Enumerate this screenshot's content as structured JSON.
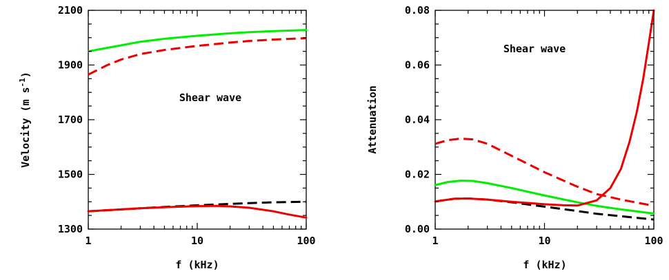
{
  "chart_data": [
    {
      "type": "line",
      "xlabel": "f (kHz)",
      "ylabel": "Velocity (m s",
      "ylabel_superscript": "-1",
      "ylabel_close": ")",
      "annotation": "Shear wave",
      "x_scale": "log",
      "xlim": [
        1,
        100
      ],
      "ylim": [
        1300,
        2100
      ],
      "x_ticks": [
        {
          "v": 1,
          "label": "1"
        },
        {
          "v": 10,
          "label": "10"
        },
        {
          "v": 100,
          "label": "100"
        }
      ],
      "y_ticks": [
        {
          "v": 1300,
          "label": "1300"
        },
        {
          "v": 1500,
          "label": "1500"
        },
        {
          "v": 1700,
          "label": "1700"
        },
        {
          "v": 1900,
          "label": "1900"
        },
        {
          "v": 2100,
          "label": "2100"
        }
      ],
      "grid": false,
      "series": [
        {
          "color": "#00ee00",
          "style": "solid",
          "x": [
            1,
            2,
            3,
            5,
            10,
            20,
            30,
            50,
            100
          ],
          "y": [
            1950,
            1972,
            1985,
            1996,
            2007,
            2016,
            2020,
            2024,
            2028
          ]
        },
        {
          "color": "#ee0000",
          "style": "dashed",
          "x": [
            1,
            1.5,
            2,
            3,
            5,
            10,
            20,
            30,
            50,
            100
          ],
          "y": [
            1865,
            1900,
            1920,
            1940,
            1955,
            1970,
            1982,
            1988,
            1993,
            1998
          ]
        },
        {
          "color": "#000000",
          "style": "dashed",
          "x": [
            1,
            2,
            3,
            5,
            10,
            20,
            30,
            50,
            100
          ],
          "y": [
            1365,
            1372,
            1376,
            1381,
            1387,
            1392,
            1395,
            1398,
            1400
          ]
        },
        {
          "color": "#ee0000",
          "style": "solid",
          "x": [
            1,
            2,
            3,
            5,
            10,
            15,
            20,
            30,
            50,
            70,
            100
          ],
          "y": [
            1365,
            1372,
            1376,
            1380,
            1384,
            1385,
            1383,
            1378,
            1365,
            1353,
            1342
          ]
        }
      ]
    },
    {
      "type": "line",
      "xlabel": "f (kHz)",
      "ylabel": "Attenuation",
      "annotation": "Shear wave",
      "x_scale": "log",
      "xlim": [
        1,
        100
      ],
      "ylim": [
        0,
        0.08
      ],
      "x_ticks": [
        {
          "v": 1,
          "label": "1"
        },
        {
          "v": 10,
          "label": "10"
        },
        {
          "v": 100,
          "label": "100"
        }
      ],
      "y_ticks": [
        {
          "v": 0,
          "label": "0.00"
        },
        {
          "v": 0.02,
          "label": "0.02"
        },
        {
          "v": 0.04,
          "label": "0.04"
        },
        {
          "v": 0.06,
          "label": "0.06"
        },
        {
          "v": 0.08,
          "label": "0.08"
        }
      ],
      "grid": false,
      "series": [
        {
          "color": "#ee0000",
          "style": "dashed",
          "x": [
            1,
            1.3,
            1.7,
            2.2,
            3,
            5,
            10,
            20,
            30,
            50,
            100
          ],
          "y": [
            0.0312,
            0.0325,
            0.0331,
            0.0328,
            0.0312,
            0.0268,
            0.0208,
            0.0155,
            0.0128,
            0.0108,
            0.0085
          ]
        },
        {
          "color": "#00ee00",
          "style": "solid",
          "x": [
            1,
            1.3,
            1.7,
            2.2,
            3,
            5,
            10,
            20,
            30,
            50,
            100
          ],
          "y": [
            0.0161,
            0.0172,
            0.0177,
            0.0176,
            0.0168,
            0.015,
            0.0123,
            0.0098,
            0.0085,
            0.0072,
            0.0057
          ]
        },
        {
          "color": "#000000",
          "style": "dashed",
          "x": [
            1,
            1.5,
            2,
            3,
            5,
            10,
            20,
            30,
            50,
            100
          ],
          "y": [
            0.0101,
            0.0111,
            0.0112,
            0.0108,
            0.0098,
            0.0082,
            0.0066,
            0.0056,
            0.0047,
            0.0035
          ]
        },
        {
          "color": "#ee0000",
          "style": "solid",
          "x": [
            1,
            1.5,
            2,
            3,
            5,
            10,
            15,
            20,
            30,
            40,
            50,
            60,
            70,
            80,
            90,
            100
          ],
          "y": [
            0.0101,
            0.0111,
            0.0112,
            0.0108,
            0.01,
            0.0091,
            0.0087,
            0.0086,
            0.0105,
            0.015,
            0.022,
            0.032,
            0.043,
            0.055,
            0.068,
            0.08
          ]
        }
      ]
    }
  ]
}
